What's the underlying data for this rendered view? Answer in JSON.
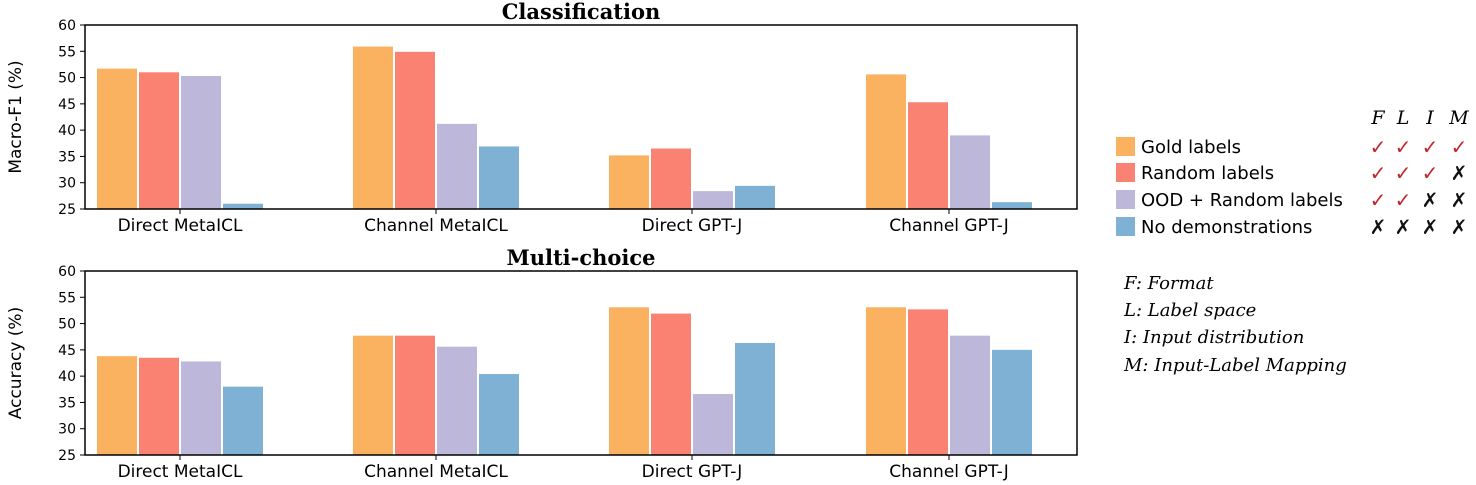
{
  "colors": {
    "series": [
      "#FBB260",
      "#F98272",
      "#BDB8D9",
      "#7EB1D4"
    ],
    "check": "#C0272D",
    "cross": "#111111"
  },
  "chart_data": [
    {
      "type": "bar",
      "title": "Classification",
      "ylabel": "Macro-F1 (%)",
      "ylim": [
        25,
        60
      ],
      "yticks": [
        25,
        30,
        35,
        40,
        45,
        50,
        55,
        60
      ],
      "categories": [
        "Direct MetaICL",
        "Channel MetaICL",
        "Direct GPT-J",
        "Channel GPT-J"
      ],
      "series": [
        {
          "name": "Gold labels",
          "values": [
            51.7,
            55.9,
            35.2,
            50.6
          ]
        },
        {
          "name": "Random labels",
          "values": [
            51.0,
            54.9,
            36.5,
            45.3
          ]
        },
        {
          "name": "OOD + Random labels",
          "values": [
            50.3,
            41.2,
            28.4,
            39.0
          ]
        },
        {
          "name": "No demonstrations",
          "values": [
            26.0,
            36.9,
            29.4,
            26.3
          ]
        }
      ]
    },
    {
      "type": "bar",
      "title": "Multi-choice",
      "ylabel": "Accuracy (%)",
      "ylim": [
        25,
        60
      ],
      "yticks": [
        25,
        30,
        35,
        40,
        45,
        50,
        55,
        60
      ],
      "categories": [
        "Direct MetaICL",
        "Channel MetaICL",
        "Direct GPT-J",
        "Channel GPT-J"
      ],
      "series": [
        {
          "name": "Gold labels",
          "values": [
            43.8,
            47.7,
            53.1,
            53.1
          ]
        },
        {
          "name": "Random labels",
          "values": [
            43.5,
            47.7,
            51.9,
            52.7
          ]
        },
        {
          "name": "OOD + Random labels",
          "values": [
            42.8,
            45.6,
            36.6,
            47.7
          ]
        },
        {
          "name": "No demonstrations",
          "values": [
            38.0,
            40.4,
            46.3,
            45.0
          ]
        }
      ]
    }
  ],
  "legend": {
    "position": "right",
    "column_headers": [
      "F",
      "L",
      "I",
      "M"
    ],
    "entries": [
      {
        "label": "Gold labels",
        "marks": [
          "✓",
          "✓",
          "✓",
          "✓"
        ]
      },
      {
        "label": "Random labels",
        "marks": [
          "✓",
          "✓",
          "✓",
          "✗"
        ]
      },
      {
        "label": "OOD + Random labels",
        "marks": [
          "✓",
          "✓",
          "✗",
          "✗"
        ]
      },
      {
        "label": "No demonstrations",
        "marks": [
          "✗",
          "✗",
          "✗",
          "✗"
        ]
      }
    ]
  },
  "notes": [
    "F: Format",
    "L: Label space",
    "I: Input distribution",
    "M: Input-Label Mapping"
  ]
}
